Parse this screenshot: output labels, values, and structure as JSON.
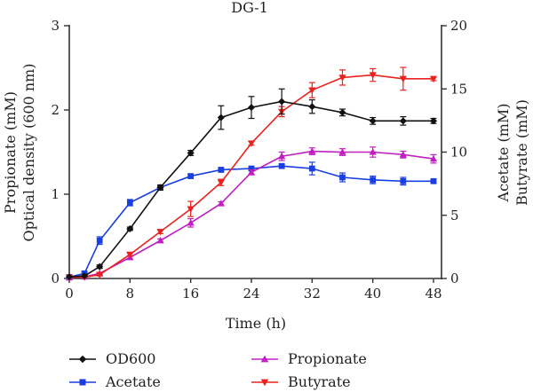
{
  "chart_data": {
    "type": "line",
    "title": "DG-1",
    "xlabel": "Time (h)",
    "ylabel_left": [
      "Propionate (mM)",
      "Optical density (600 nm)"
    ],
    "ylabel_right": [
      "Acetate (mM)",
      "Butyrate (mM)"
    ],
    "xlim": [
      0,
      49
    ],
    "xticks": [
      0,
      8,
      16,
      24,
      32,
      40,
      48
    ],
    "ylim_left": [
      0,
      3
    ],
    "yticks_left": [
      0,
      1,
      2,
      3
    ],
    "ylim_right": [
      0,
      20
    ],
    "yticks_right": [
      0,
      5,
      10,
      15,
      20
    ],
    "legend_position": "bottom",
    "series": [
      {
        "name": "OD600",
        "color": "#111111",
        "marker": "diamond",
        "axis": "left",
        "x": [
          0,
          2,
          4,
          8,
          12,
          16,
          20,
          24,
          28,
          32,
          36,
          40,
          44,
          48
        ],
        "y": [
          0.02,
          0.03,
          0.14,
          0.59,
          1.08,
          1.49,
          1.91,
          2.03,
          2.1,
          2.04,
          1.97,
          1.87,
          1.87,
          1.87
        ],
        "err": [
          0,
          0,
          0.02,
          0.02,
          0.03,
          0.03,
          0.14,
          0.13,
          0.15,
          0.08,
          0.04,
          0.04,
          0.05,
          0.03
        ]
      },
      {
        "name": "Acetate",
        "color": "#1a3fe0",
        "marker": "square",
        "axis": "right",
        "x": [
          0,
          2,
          4,
          8,
          12,
          16,
          20,
          24,
          28,
          32,
          36,
          40,
          44,
          48
        ],
        "y": [
          0.1,
          0.4,
          3.0,
          6.0,
          7.2,
          8.1,
          8.6,
          8.7,
          8.9,
          8.7,
          8.0,
          7.8,
          7.7,
          7.7
        ],
        "err": [
          0.05,
          0.1,
          0.3,
          0.25,
          0.2,
          0.15,
          0.15,
          0.15,
          0.15,
          0.5,
          0.35,
          0.3,
          0.3,
          0.15
        ]
      },
      {
        "name": "Propionate",
        "color": "#c020c0",
        "marker": "triangle-up",
        "axis": "left",
        "x": [
          0,
          2,
          4,
          8,
          12,
          16,
          20,
          24,
          28,
          32,
          36,
          40,
          44,
          48
        ],
        "y": [
          0.01,
          0.02,
          0.06,
          0.25,
          0.45,
          0.66,
          0.89,
          1.26,
          1.45,
          1.51,
          1.5,
          1.5,
          1.47,
          1.42
        ],
        "err": [
          0,
          0,
          0.01,
          0.02,
          0.02,
          0.05,
          0.02,
          0.03,
          0.05,
          0.04,
          0.04,
          0.06,
          0.04,
          0.05
        ]
      },
      {
        "name": "Butyrate",
        "color": "#e8231f",
        "marker": "triangle-down",
        "axis": "right",
        "x": [
          0,
          2,
          4,
          8,
          12,
          16,
          20,
          24,
          28,
          32,
          36,
          40,
          44,
          48
        ],
        "y": [
          0.1,
          0.1,
          0.3,
          1.9,
          3.7,
          5.5,
          7.6,
          10.7,
          13.2,
          14.9,
          15.9,
          16.1,
          15.8,
          15.8
        ],
        "err": [
          0,
          0,
          0.1,
          0.1,
          0.15,
          0.6,
          0.25,
          0.15,
          0.4,
          0.6,
          0.6,
          0.5,
          0.9,
          0.15
        ]
      }
    ]
  }
}
